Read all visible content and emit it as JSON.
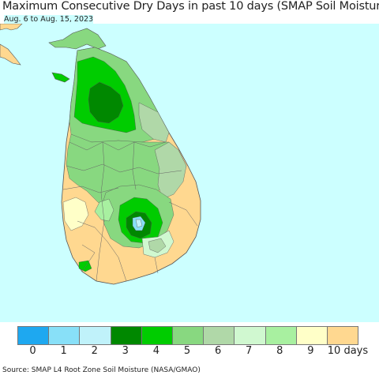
{
  "title": "Maximum Consecutive Dry Days in past 10 days (SMAP Soil Moisture)",
  "subtitle": "Aug. 6 to Aug. 15, 2023",
  "legend": {
    "labels": [
      "0",
      "1",
      "2",
      "3",
      "4",
      "5",
      "6",
      "7",
      "8",
      "9",
      "10 days"
    ],
    "colors": [
      "#1ea8f0",
      "#88e0f8",
      "#c0f2fa",
      "#008800",
      "#00cc00",
      "#88d880",
      "#b0d8a8",
      "#d0f8d0",
      "#a8f0a0",
      "#ffffc8",
      "#ffd890"
    ]
  },
  "source": "Source: SMAP L4 Root Zone Soil Moisture (NASA/GMAO)",
  "map": {
    "ocean_color": "#ccffff",
    "land_color_default": "#ffd890"
  }
}
